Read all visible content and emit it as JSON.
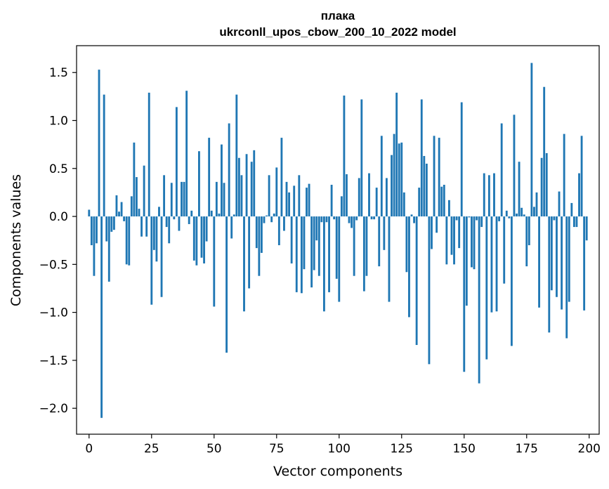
{
  "chart_data": {
    "type": "bar",
    "title": "плака",
    "subtitle": "ukrconll_upos_cbow_200_10_2022 model",
    "xlabel": "Vector components",
    "ylabel": "Components values",
    "xlim": [
      -5,
      204
    ],
    "ylim": [
      -2.27,
      1.78
    ],
    "xticks": [
      0,
      25,
      50,
      75,
      100,
      125,
      150,
      175,
      200
    ],
    "xtick_labels": [
      "0",
      "25",
      "50",
      "75",
      "100",
      "125",
      "150",
      "175",
      "200"
    ],
    "yticks": [
      -2.0,
      -1.5,
      -1.0,
      -0.5,
      0.0,
      0.5,
      1.0,
      1.5
    ],
    "ytick_labels": [
      "−2.0",
      "−1.5",
      "−1.0",
      "−0.5",
      "0.0",
      "0.5",
      "1.0",
      "1.5"
    ],
    "grid": false,
    "bar_color": "#1f77b4",
    "x": [
      0,
      1,
      2,
      3,
      4,
      5,
      6,
      7,
      8,
      9,
      10,
      11,
      12,
      13,
      14,
      15,
      16,
      17,
      18,
      19,
      20,
      21,
      22,
      23,
      24,
      25,
      26,
      27,
      28,
      29,
      30,
      31,
      32,
      33,
      34,
      35,
      36,
      37,
      38,
      39,
      40,
      41,
      42,
      43,
      44,
      45,
      46,
      47,
      48,
      49,
      50,
      51,
      52,
      53,
      54,
      55,
      56,
      57,
      58,
      59,
      60,
      61,
      62,
      63,
      64,
      65,
      66,
      67,
      68,
      69,
      70,
      71,
      72,
      73,
      74,
      75,
      76,
      77,
      78,
      79,
      80,
      81,
      82,
      83,
      84,
      85,
      86,
      87,
      88,
      89,
      90,
      91,
      92,
      93,
      94,
      95,
      96,
      97,
      98,
      99,
      100,
      101,
      102,
      103,
      104,
      105,
      106,
      107,
      108,
      109,
      110,
      111,
      112,
      113,
      114,
      115,
      116,
      117,
      118,
      119,
      120,
      121,
      122,
      123,
      124,
      125,
      126,
      127,
      128,
      129,
      130,
      131,
      132,
      133,
      134,
      135,
      136,
      137,
      138,
      139,
      140,
      141,
      142,
      143,
      144,
      145,
      146,
      147,
      148,
      149,
      150,
      151,
      152,
      153,
      154,
      155,
      156,
      157,
      158,
      159,
      160,
      161,
      162,
      163,
      164,
      165,
      166,
      167,
      168,
      169,
      170,
      171,
      172,
      173,
      174,
      175,
      176,
      177,
      178,
      179,
      180,
      181,
      182,
      183,
      184,
      185,
      186,
      187,
      188,
      189,
      190,
      191,
      192,
      193,
      194,
      195,
      196,
      197,
      198,
      199
    ],
    "values": [
      0.07,
      -0.3,
      -0.62,
      -0.28,
      1.53,
      -2.1,
      1.27,
      -0.26,
      -0.68,
      -0.16,
      -0.14,
      0.22,
      0.05,
      0.15,
      -0.05,
      -0.5,
      -0.51,
      0.21,
      0.77,
      0.41,
      0.08,
      -0.21,
      0.53,
      -0.21,
      1.29,
      -0.92,
      -0.35,
      -0.47,
      0.1,
      -0.84,
      0.43,
      -0.11,
      -0.28,
      0.35,
      -0.03,
      1.14,
      -0.15,
      0.36,
      0.36,
      1.31,
      -0.08,
      0.06,
      -0.46,
      -0.51,
      0.68,
      -0.43,
      -0.49,
      -0.26,
      0.82,
      0.06,
      -0.94,
      0.36,
      0.03,
      0.75,
      0.35,
      -1.42,
      0.97,
      -0.23,
      0.02,
      1.27,
      0.61,
      0.43,
      -0.99,
      0.65,
      -0.75,
      0.57,
      0.69,
      -0.33,
      -0.62,
      -0.38,
      -0.07,
      0.01,
      0.43,
      -0.06,
      0.03,
      0.51,
      -0.3,
      0.82,
      -0.15,
      0.36,
      0.25,
      -0.49,
      0.32,
      -0.79,
      0.43,
      -0.8,
      -0.55,
      0.3,
      0.34,
      -0.74,
      -0.56,
      -0.25,
      -0.62,
      -0.06,
      -0.99,
      -0.06,
      -0.79,
      0.33,
      -0.03,
      -0.65,
      -0.89,
      0.21,
      1.26,
      0.44,
      -0.07,
      -0.12,
      -0.62,
      -0.04,
      0.4,
      1.22,
      -0.78,
      -0.62,
      0.45,
      -0.03,
      -0.03,
      0.3,
      -0.52,
      0.84,
      -0.35,
      0.4,
      -0.89,
      0.64,
      0.86,
      1.29,
      0.76,
      0.77,
      0.25,
      -0.58,
      -1.05,
      0.02,
      -0.07,
      -1.34,
      0.3,
      1.22,
      0.63,
      0.55,
      -1.54,
      -0.34,
      0.84,
      -0.17,
      0.82,
      0.31,
      0.33,
      -0.5,
      0.17,
      -0.4,
      -0.5,
      -0.04,
      -0.33,
      1.19,
      -1.62,
      -0.93,
      -0.01,
      -0.53,
      -0.55,
      -0.04,
      -1.74,
      -0.11,
      0.45,
      -1.49,
      0.43,
      -1.0,
      0.45,
      -0.99,
      -0.05,
      0.97,
      -0.7,
      0.06,
      -0.02,
      -1.35,
      1.06,
      0.03,
      0.57,
      0.09,
      0.02,
      -0.52,
      -0.3,
      1.6,
      0.1,
      0.25,
      -0.95,
      0.61,
      1.35,
      0.66,
      -1.21,
      -0.77,
      -0.04,
      -0.84,
      0.26,
      -0.97,
      0.86,
      -1.27,
      -0.89,
      0.14,
      -0.11,
      -0.11,
      0.45,
      0.84,
      -0.98,
      -0.25
    ]
  }
}
